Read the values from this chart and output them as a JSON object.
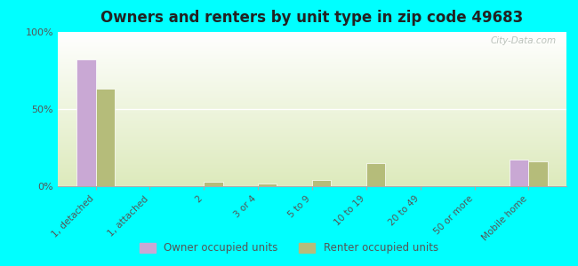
{
  "title": "Owners and renters by unit type in zip code 49683",
  "categories": [
    "1, detached",
    "1, attached",
    "2",
    "3 or 4",
    "5 to 9",
    "10 to 19",
    "20 to 49",
    "50 or more",
    "Mobile home"
  ],
  "owner_values": [
    82,
    0,
    0,
    0,
    0,
    0,
    0,
    0,
    17
  ],
  "renter_values": [
    63,
    0,
    3,
    2,
    4,
    15,
    0,
    0,
    16
  ],
  "owner_color": "#c9a8d4",
  "renter_color": "#b5bc7a",
  "background_color": "#00FFFF",
  "plot_bg_top": "#ffffff",
  "plot_bg_bottom": "#deeabc",
  "ylabel_ticks": [
    "0%",
    "50%",
    "100%"
  ],
  "ytick_vals": [
    0,
    50,
    100
  ],
  "ylim": [
    0,
    100
  ],
  "bar_width": 0.35,
  "legend_owner": "Owner occupied units",
  "legend_renter": "Renter occupied units",
  "watermark": "City-Data.com"
}
